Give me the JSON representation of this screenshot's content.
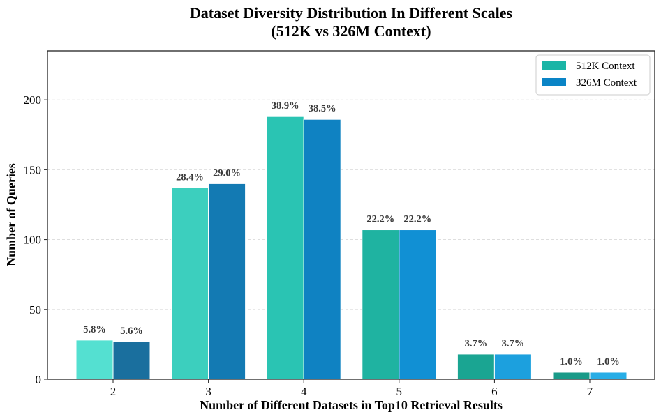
{
  "chart_data": {
    "type": "bar",
    "title": "Dataset Diversity Distribution In Different Scales",
    "subtitle": "(512K vs 326M Context)",
    "xlabel": "Number of Different Datasets in Top10 Retrieval Results",
    "ylabel": "Number of Queries",
    "categories": [
      "2",
      "3",
      "4",
      "5",
      "6",
      "7"
    ],
    "ylim": [
      0,
      235
    ],
    "yticks": [
      "0",
      "50",
      "100",
      "150",
      "200"
    ],
    "grid": true,
    "legend_position": "top-right",
    "series": [
      {
        "name": "512K Context",
        "legend_color": "#1ab5a6",
        "values": [
          28,
          137,
          188,
          107,
          18,
          5
        ],
        "labels": [
          "5.8%",
          "28.4%",
          "38.9%",
          "22.2%",
          "3.7%",
          "1.0%"
        ],
        "colors": [
          "#54e0d1",
          "#3ccfbe",
          "#2ac4b3",
          "#1fb3a1",
          "#1aa592",
          "#199a88"
        ]
      },
      {
        "name": "326M Context",
        "legend_color": "#0a84c6",
        "values": [
          27,
          140,
          186,
          107,
          18,
          5
        ],
        "labels": [
          "5.6%",
          "29.0%",
          "38.5%",
          "22.2%",
          "3.7%",
          "1.0%"
        ],
        "colors": [
          "#1a6f9e",
          "#137ab3",
          "#0f82c2",
          "#1190d4",
          "#1ca0de",
          "#27ade6"
        ]
      }
    ]
  }
}
